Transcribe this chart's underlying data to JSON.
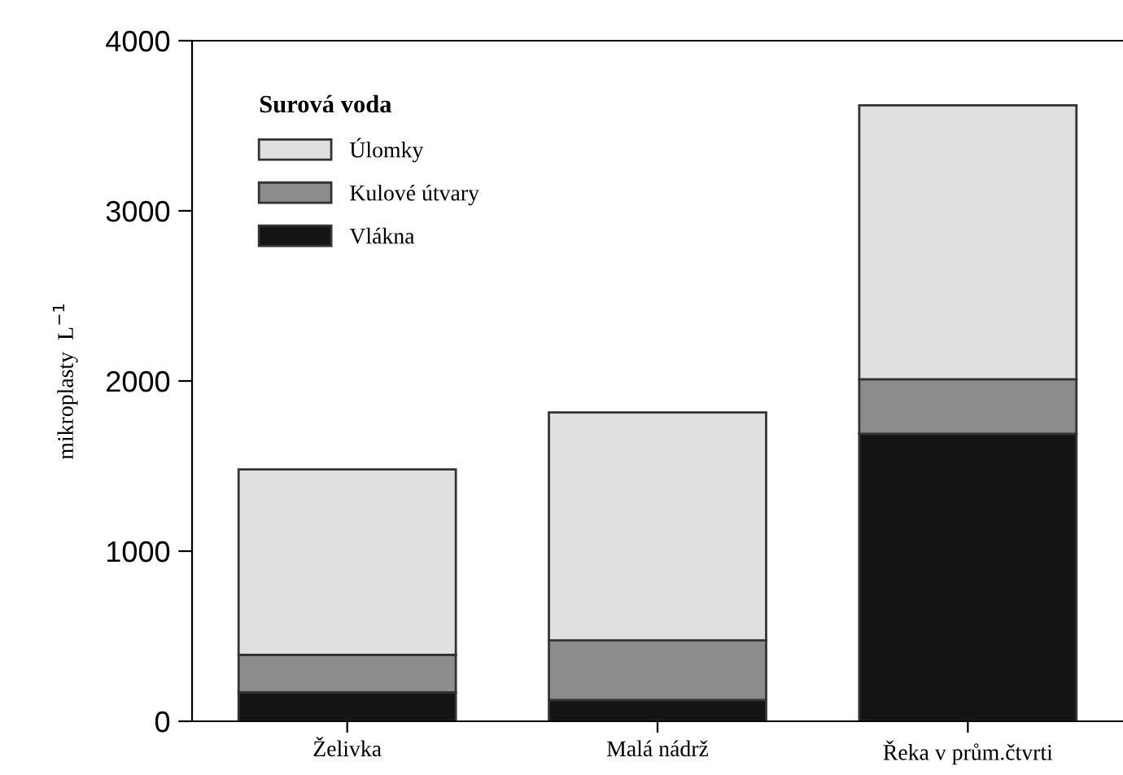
{
  "chart_data": {
    "type": "bar",
    "stacked": true,
    "ylabel": "mikroplasty  L$^{−1}$",
    "legend_title": "Surová voda",
    "categories": [
      "Želivka",
      "Malá nádrž",
      "Řeka v prům.čtvrti"
    ],
    "series": [
      {
        "name": "Vlákna",
        "color": "#141414",
        "values": [
          170,
          125,
          1690
        ]
      },
      {
        "name": "Kulové útvary",
        "color": "#8c8c8c",
        "values": [
          220,
          350,
          320
        ]
      },
      {
        "name": "Úlomky",
        "color": "#e0e0e0",
        "values": [
          1090,
          1340,
          1610
        ]
      }
    ],
    "ylim": [
      0,
      4000
    ],
    "yticks": [
      0,
      1000,
      2000,
      3000,
      4000
    ],
    "grid": false,
    "legend": "top left"
  }
}
